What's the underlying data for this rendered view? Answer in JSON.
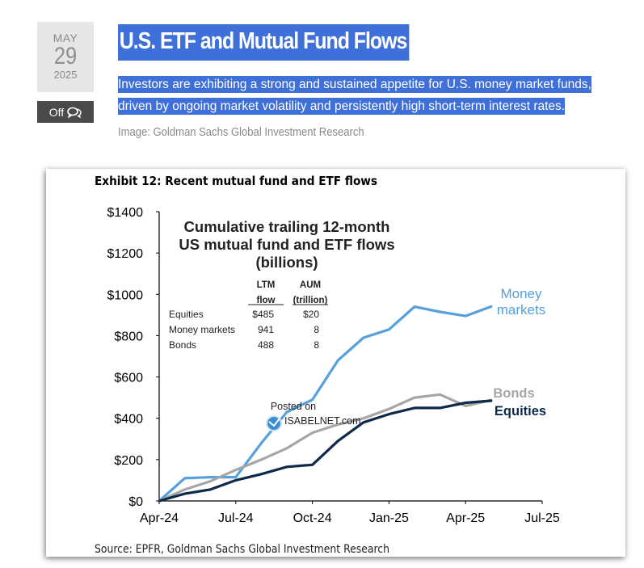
{
  "date": {
    "month": "MAY",
    "day": "29",
    "year": "2025"
  },
  "comments": {
    "label": "Off"
  },
  "post": {
    "title": "U.S. ETF and Mutual Fund Flows",
    "excerpt": "Investors are exhibiting a strong and sustained appetite for U.S. money market funds, driven by ongoing market volatility and persistently high short-term interest rates.",
    "image_credit": "Image: Goldman Sachs Global Investment Research"
  },
  "chart_data": {
    "type": "line",
    "exhibit_title": "Exhibit 12: Recent mutual fund and ETF flows",
    "title_lines": [
      "Cumulative trailing 12-month",
      "US  mutual fund and ETF flows",
      "(billions)"
    ],
    "source": "Source: EPFR, Goldman Sachs Global Investment Research",
    "watermark": [
      "Posted on",
      "ISABELNET.com"
    ],
    "ylim": [
      0,
      1400
    ],
    "yticks": [
      "$0",
      "$200",
      "$400",
      "$600",
      "$800",
      "$1000",
      "$1200",
      "$1400"
    ],
    "xticks": [
      "Apr-24",
      "Jul-24",
      "Oct-24",
      "Jan-25",
      "Apr-25",
      "Jul-25"
    ],
    "grid": false,
    "x": [
      "2024-04",
      "2024-05",
      "2024-06",
      "2024-07",
      "2024-08",
      "2024-09",
      "2024-10",
      "2024-11",
      "2024-12",
      "2025-01",
      "2025-02",
      "2025-03",
      "2025-04",
      "2025-05"
    ],
    "series": [
      {
        "name": "Money markets",
        "color": "#56a0dc",
        "values": [
          0,
          110,
          115,
          115,
          280,
          430,
          490,
          680,
          790,
          830,
          940,
          915,
          895,
          941
        ]
      },
      {
        "name": "Bonds",
        "color": "#a6a6a6",
        "values": [
          0,
          55,
          95,
          150,
          200,
          255,
          330,
          370,
          400,
          445,
          500,
          515,
          460,
          488
        ]
      },
      {
        "name": "Equities",
        "color": "#0d2a4d",
        "values": [
          0,
          35,
          55,
          100,
          130,
          165,
          175,
          290,
          380,
          420,
          450,
          450,
          475,
          485
        ]
      }
    ],
    "table": {
      "headers": [
        [
          "LTM",
          "flow"
        ],
        [
          "AUM",
          "(trillion)"
        ]
      ],
      "rows": [
        {
          "label": "Equities",
          "ltm": "$485",
          "aum": "$20"
        },
        {
          "label": "Money markets",
          "ltm": "941",
          "aum": "8"
        },
        {
          "label": "Bonds",
          "ltm": "488",
          "aum": "8"
        }
      ]
    },
    "series_labels": [
      {
        "lines": [
          "Money",
          "markets"
        ],
        "color": "#56a0dc"
      },
      {
        "lines": [
          "Bonds"
        ],
        "color": "#a6a6a6"
      },
      {
        "lines": [
          "Equities"
        ],
        "color": "#0d2a4d"
      }
    ]
  }
}
